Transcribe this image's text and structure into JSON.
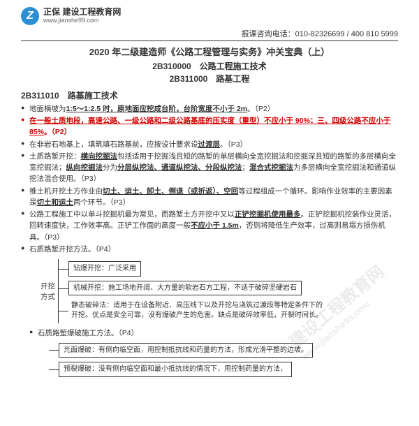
{
  "header": {
    "logo_text": "Z",
    "brand_cn": "正保 建设工程教育网",
    "brand_url": "www.jianshe99.com",
    "hotline": "报课咨询电话：010-82326699 / 400 810 5999"
  },
  "titles": {
    "main": "2020 年二级建造师《公路工程管理与实务》冲关宝典（上）",
    "sub1": "2B310000　公路工程施工技术",
    "sub2": "2B311000　路基工程"
  },
  "section": "2B311010　路基施工技术",
  "bullets": [
    {
      "pre": "地面横坡为",
      "u1": "1:5～1:2.5 时，原地面应挖成台阶，台阶宽度不小于 2m",
      "post": "。（P2）",
      "red": false
    },
    {
      "pre": "",
      "u1": "在一般土质地段，高速公路、一级公路和二级公路基底的压实度（重型）不应小于 90%；三、四级公路不应小于 85%",
      "post": "。（P2）",
      "red": true
    },
    {
      "pre": "在非岩石地基上，填筑填石路基前，应按设计要求设",
      "u1": "过渡层",
      "post": "。（P3）",
      "red": false
    },
    {
      "pre": "土质路堑开挖：",
      "u1": "横向挖掘法",
      "mid": "包括适用于挖掘浅且短的路堑的单层横向全宽挖掘法和挖掘深且短的路堑的多层横向全宽挖掘法；",
      "u2": "纵向挖掘法",
      "mid2": "分为",
      "u3": "分层纵挖法、通道纵挖法、分段纵挖法",
      "mid3": "；",
      "u4": "混合式挖掘法",
      "post": "为多层横向全宽挖掘法和通道纵挖法混合使用。（P3）",
      "red": false
    },
    {
      "pre": "推土机开挖土方作业由",
      "u1": "切土、运土、卸土、倒退（或折返）、空回",
      "post": "等过程组成一个循环。影响作业效率的主要因素是",
      "u2": "切土和运土",
      "post2": "两个环节。（P3）",
      "red": false
    },
    {
      "pre": "公路工程施工中以单斗挖掘机最为常见，而路堑土方开挖中又以",
      "u1": "正铲挖掘机使用最多",
      "post": "。正铲挖掘机挖装作业灵活，回转速度快，工作效率高。正铲工作面的高度一般",
      "u2": "不应小于 1.5m",
      "post2": "，否则将降低生产效率，过高则易塌方损伤机具。（P3）",
      "red": false
    },
    {
      "pre": "石质路堑开挖方法。（P4）",
      "plain": true
    }
  ],
  "tree1": {
    "root": "开挖\n方式",
    "branches": [
      {
        "label": "钻爆开挖：广泛采用",
        "box": true
      },
      {
        "label": "机械开挖：施工场地开阔、大方量的软岩石方工程，不适于破碎坚硬岩石",
        "box": true
      },
      {
        "label": "静态破碎法：适用于在设备附近、高压线下以及开挖与浇筑过渡段等特定条件下的开挖。优点是安全可靠，没有爆破产生的危害。缺点是破碎效率低，开裂时间长。",
        "box": false
      }
    ]
  },
  "tree2": {
    "title": "石质路堑爆破施工方法。（P4）",
    "branches": [
      {
        "label": "光面爆破：有侧向临空面，用控制抵抗线和药量的方法，形成光滑平整的边坡。",
        "box": true
      },
      {
        "label": "预裂爆破：没有侧向临空面和最小抵抗线的情况下，用控制药量的方法，",
        "box": true
      }
    ]
  },
  "watermark": {
    "main": "建设工程教育网",
    "sub": "www.jianshe99.com"
  },
  "colors": {
    "red": "#d40000",
    "text": "#333333",
    "logo": "#2a8fd4"
  }
}
